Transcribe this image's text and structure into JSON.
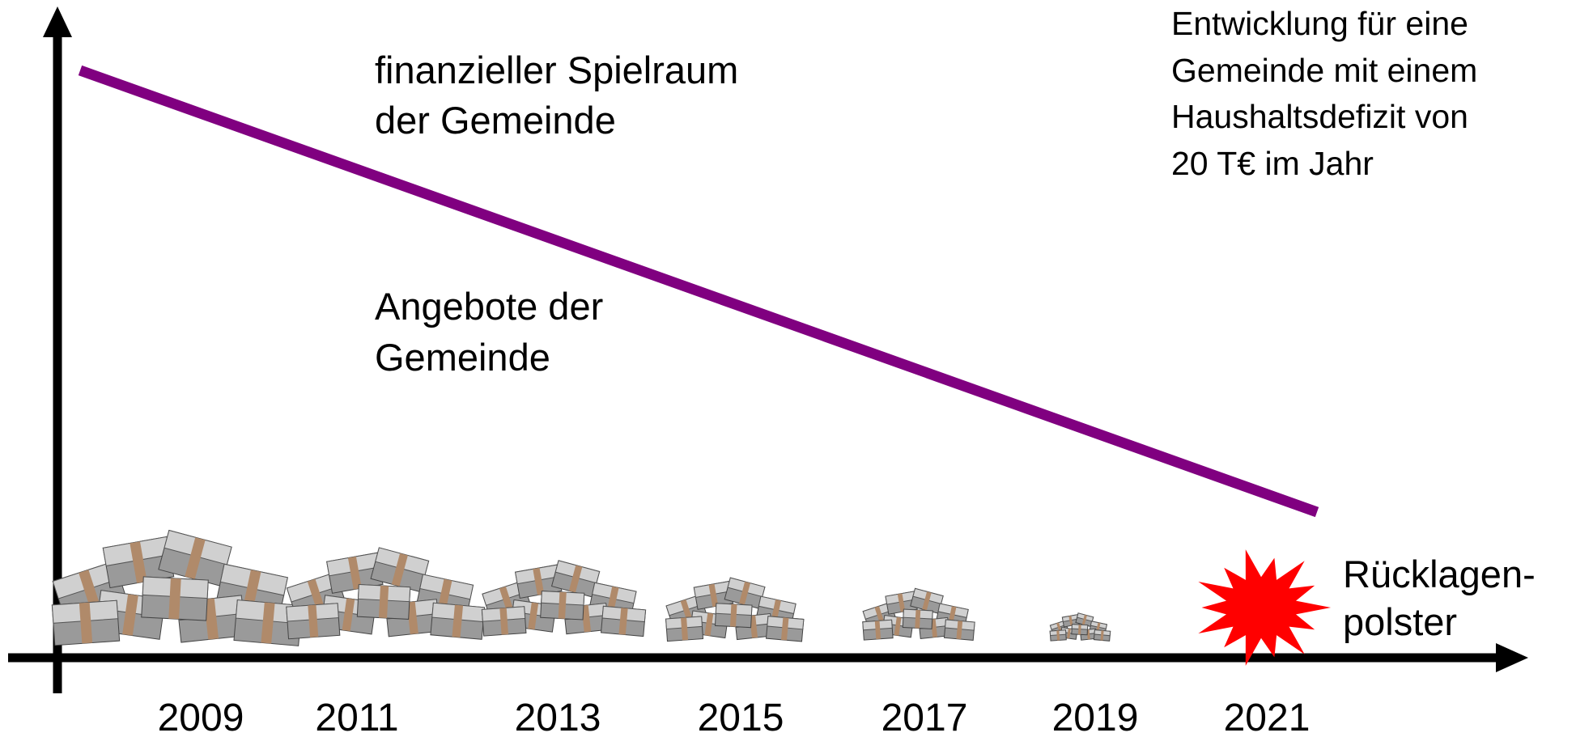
{
  "spielraum_label": [
    "finanzieller Spielraum",
    "der Gemeinde"
  ],
  "angebote_label": [
    "Angebote der",
    "Gemeinde"
  ],
  "note": [
    "Entwicklung für eine",
    "Gemeinde mit einem",
    "Haushaltsdefizit von",
    "20 T€ im Jahr"
  ],
  "ruecklagen_label": [
    "Rücklagen-",
    "polster"
  ],
  "years": [
    "2009",
    "2011",
    "2013",
    "2015",
    "2017",
    "2019",
    "2021"
  ]
}
